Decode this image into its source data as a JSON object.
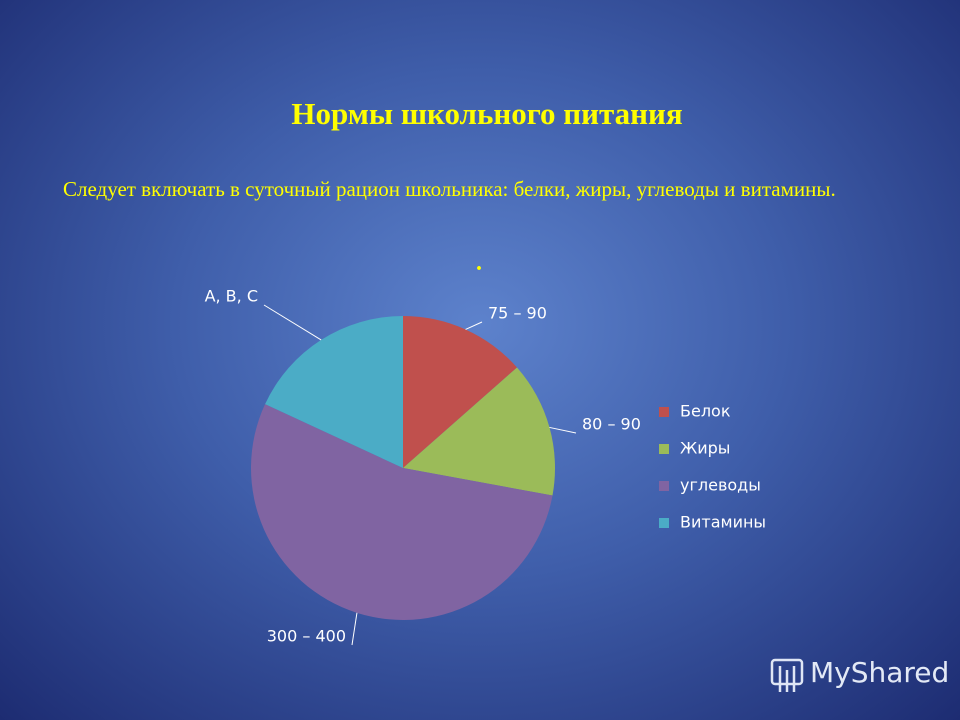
{
  "title": "Нормы школьного питания",
  "text": "Следует включать в суточный рацион школьника: белки, жиры, углеводы и витамины.",
  "note": ".",
  "watermark": "MyShared",
  "chart_data": {
    "type": "pie",
    "categories": [
      "Белок",
      "Жиры",
      "углеводы",
      "Витамины"
    ],
    "values": [
      13.5,
      14.4,
      54,
      18.1
    ],
    "slice_labels": [
      "75 – 90",
      "80 – 90",
      "300 – 400",
      "A, B, C"
    ],
    "colors": [
      "#c0504d",
      "#9bbb59",
      "#8064a2",
      "#4bacc6"
    ],
    "legend": "right"
  }
}
